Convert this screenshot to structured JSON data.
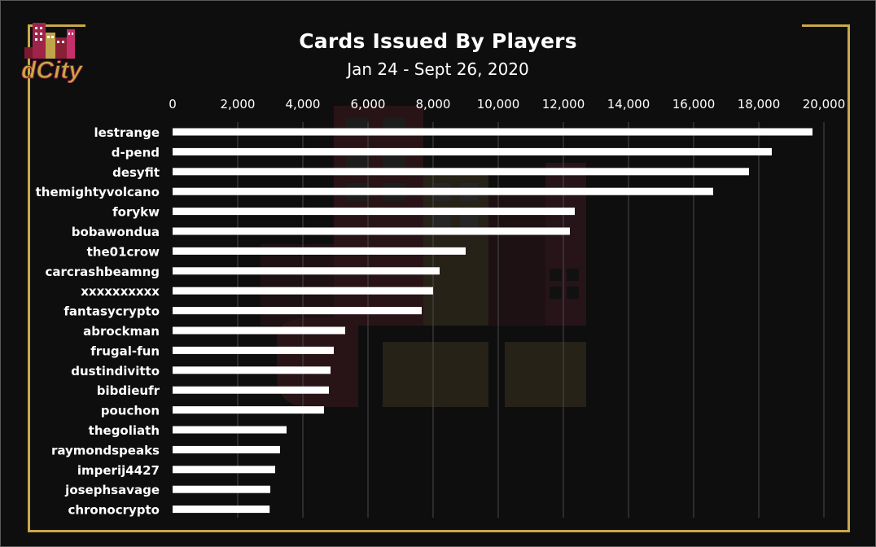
{
  "logo": {
    "text": "dCity"
  },
  "chart_data": {
    "type": "bar",
    "orientation": "horizontal",
    "title": "Cards Issued By Players",
    "subtitle": "Jan 24 - Sept 26, 2020",
    "xlabel": "",
    "ylabel": "",
    "xlim": [
      0,
      20000
    ],
    "x_ticks": [
      0,
      2000,
      4000,
      6000,
      8000,
      10000,
      12000,
      14000,
      16000,
      18000,
      20000
    ],
    "x_tick_labels": [
      "0",
      "2,000",
      "4,000",
      "6,000",
      "8,000",
      "10,000",
      "12,000",
      "14,000",
      "16,000",
      "18,000",
      "20,000"
    ],
    "x_axis_position": "top",
    "grid": true,
    "legend": "none",
    "categories": [
      "lestrange",
      "d-pend",
      "desyfit",
      "themightyvolcano",
      "forykw",
      "bobawondua",
      "the01crow",
      "carcrashbeamng",
      "xxxxxxxxxx",
      "fantasycrypto",
      "abrockman",
      "frugal-fun",
      "dustindivitto",
      "bibdieufr",
      "pouchon",
      "thegoliath",
      "raymondspeaks",
      "imperij4427",
      "josephsavage",
      "chronocrypto"
    ],
    "values": [
      19650,
      18400,
      17700,
      16600,
      12350,
      12200,
      9000,
      8200,
      8000,
      7650,
      5300,
      4950,
      4850,
      4800,
      4650,
      3500,
      3300,
      3150,
      3000,
      2980
    ]
  },
  "colors": {
    "background": "#0e0e0e",
    "bar": "#ffffff",
    "border": "#c8a948",
    "grid": "#4a4a4a",
    "text": "#ffffff"
  }
}
